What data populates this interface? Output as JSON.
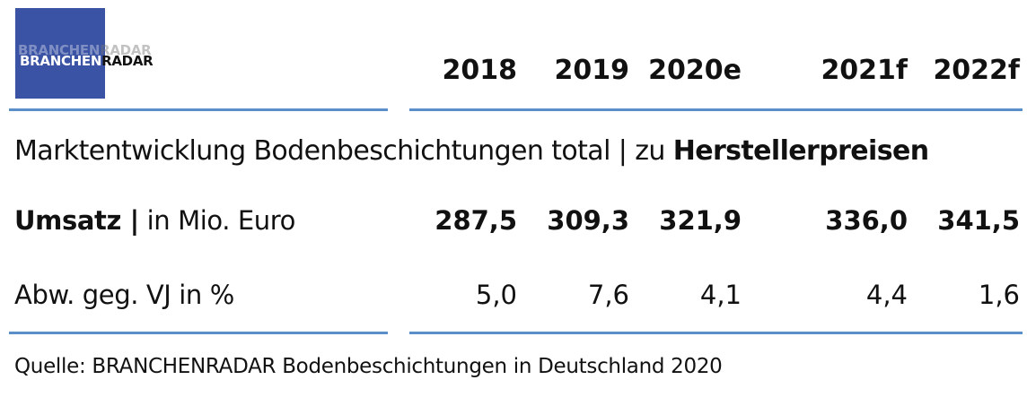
{
  "logo": {
    "part1": "BRANCHEN",
    "part2": "RADAR"
  },
  "years": [
    "2018",
    "2019",
    "2020e",
    "2021f",
    "2022f"
  ],
  "title": {
    "prefix": "Marktentwicklung Bodenbeschichtungen total | zu ",
    "bold": "Herstellerpreisen"
  },
  "rows": [
    {
      "label_bold": "Umsatz |",
      "label_rest": " in Mio. Euro",
      "values": [
        "287,5",
        "309,3",
        "321,9",
        "336,0",
        "341,5"
      ]
    },
    {
      "label": "Abw. geg. VJ in %",
      "values": [
        "5,0",
        "7,6",
        "4,1",
        "4,4",
        "1,6"
      ]
    }
  ],
  "source": "Quelle: BRANCHENRADAR Bodenbeschichtungen in Deutschland 2020",
  "colors": {
    "logo_bg": "#3b53a4",
    "rule": "#5a8fc9",
    "text": "#111111"
  }
}
